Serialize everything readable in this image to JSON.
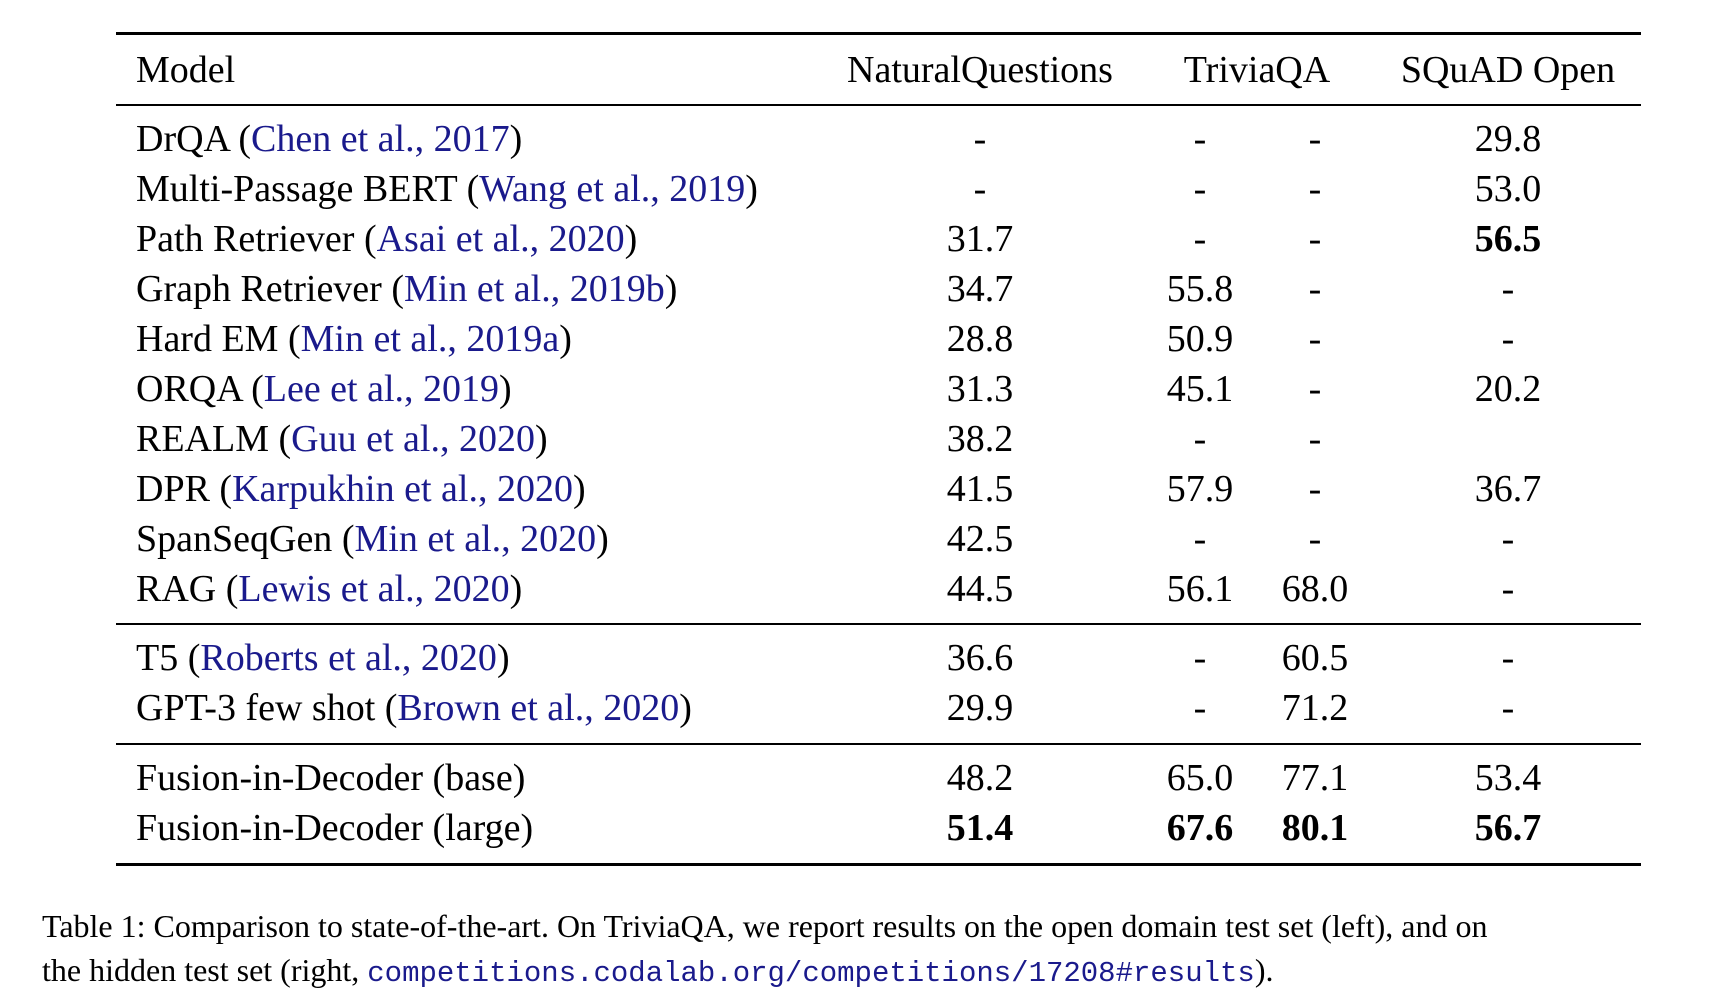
{
  "table": {
    "headers": [
      "Model",
      "NaturalQuestions",
      "TriviaQA",
      "SQuAD Open"
    ],
    "rows": [
      {
        "name": "DrQA",
        "cite": "Chen et al., 2017",
        "nq": "-",
        "tqa_open": "-",
        "tqa_hidden": "-",
        "squad": "29.8",
        "bold": []
      },
      {
        "name": "Multi-Passage BERT",
        "cite": "Wang et al., 2019",
        "nq": "-",
        "tqa_open": "-",
        "tqa_hidden": "-",
        "squad": "53.0",
        "bold": []
      },
      {
        "name": "Path Retriever",
        "cite": "Asai et al., 2020",
        "nq": "31.7",
        "tqa_open": "-",
        "tqa_hidden": "-",
        "squad": "56.5",
        "bold": [
          "squad"
        ]
      },
      {
        "name": "Graph Retriever",
        "cite": "Min et al., 2019b",
        "nq": "34.7",
        "tqa_open": "55.8",
        "tqa_hidden": "-",
        "squad": "-",
        "bold": []
      },
      {
        "name": "Hard EM",
        "cite": "Min et al., 2019a",
        "nq": "28.8",
        "tqa_open": "50.9",
        "tqa_hidden": "-",
        "squad": "-",
        "bold": []
      },
      {
        "name": "ORQA",
        "cite": "Lee et al., 2019",
        "nq": "31.3",
        "tqa_open": "45.1",
        "tqa_hidden": "-",
        "squad": "20.2",
        "bold": []
      },
      {
        "name": "REALM",
        "cite": "Guu et al., 2020",
        "nq": "38.2",
        "tqa_open": "-",
        "tqa_hidden": "-",
        "squad": "",
        "bold": []
      },
      {
        "name": "DPR",
        "cite": "Karpukhin et al., 2020",
        "nq": "41.5",
        "tqa_open": "57.9",
        "tqa_hidden": "-",
        "squad": "36.7",
        "bold": []
      },
      {
        "name": "SpanSeqGen",
        "cite": "Min et al., 2020",
        "nq": "42.5",
        "tqa_open": "-",
        "tqa_hidden": "-",
        "squad": "-",
        "bold": []
      },
      {
        "name": "RAG",
        "cite": "Lewis et al., 2020",
        "nq": "44.5",
        "tqa_open": "56.1",
        "tqa_hidden": "68.0",
        "squad": "-",
        "bold": []
      },
      {
        "name": "T5",
        "cite": "Roberts et al., 2020",
        "nq": "36.6",
        "tqa_open": "-",
        "tqa_hidden": "60.5",
        "squad": "-",
        "bold": []
      },
      {
        "name": "GPT-3 few shot",
        "cite": "Brown et al., 2020",
        "nq": "29.9",
        "tqa_open": "-",
        "tqa_hidden": "71.2",
        "squad": "-",
        "bold": []
      },
      {
        "name": "Fusion-in-Decoder (base)",
        "cite": "",
        "nq": "48.2",
        "tqa_open": "65.0",
        "tqa_hidden": "77.1",
        "squad": "53.4",
        "bold": []
      },
      {
        "name": "Fusion-in-Decoder (large)",
        "cite": "",
        "nq": "51.4",
        "tqa_open": "67.6",
        "tqa_hidden": "80.1",
        "squad": "56.7",
        "bold": [
          "nq",
          "tqa_open",
          "tqa_hidden",
          "squad"
        ]
      }
    ]
  },
  "caption": {
    "line1": "Table 1: Comparison to state-of-the-art. On TriviaQA, we report results on the open domain test set (left), and on",
    "line2_before": "the hidden test set (right, ",
    "line2_link": "competitions.codalab.org/competitions/17208#results",
    "line2_after": ")."
  },
  "colors": {
    "citation": "#1a1a8c",
    "text": "#000000"
  }
}
